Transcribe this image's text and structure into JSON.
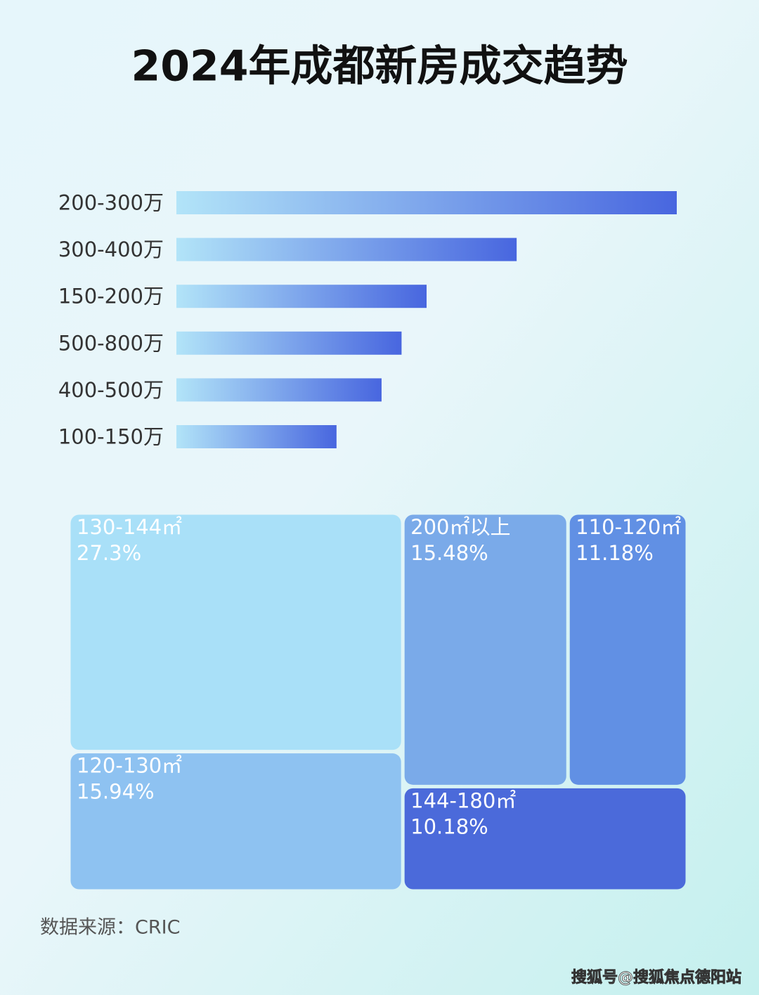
{
  "title": "2024年成都新房成交趋势",
  "chart_data": [
    {
      "type": "bar",
      "categories": [
        "200-300万",
        "300-400万",
        "150-200万",
        "500-800万",
        "400-500万",
        "100-150万"
      ],
      "values": [
        100,
        68,
        50,
        45,
        41,
        32
      ],
      "xlim": [
        0,
        100
      ],
      "gradient": [
        "#b2e4f8",
        "#4866df"
      ]
    },
    {
      "type": "treemap",
      "categories": [
        "130-144㎡",
        "120-130㎡",
        "200㎡以上",
        "110-120㎡",
        "144-180㎡"
      ],
      "values": [
        27.3,
        15.94,
        15.48,
        11.18,
        10.18
      ],
      "value_labels": [
        "27.3%",
        "15.94%",
        "15.48%",
        "11.18%",
        "10.18%"
      ],
      "colors": [
        "#a9e0f8",
        "#8ec2f1",
        "#7aaae9",
        "#6190e4",
        "#4b6ada"
      ]
    }
  ],
  "source": "数据来源：CRIC",
  "watermark": "搜狐号@搜狐焦点德阳站"
}
